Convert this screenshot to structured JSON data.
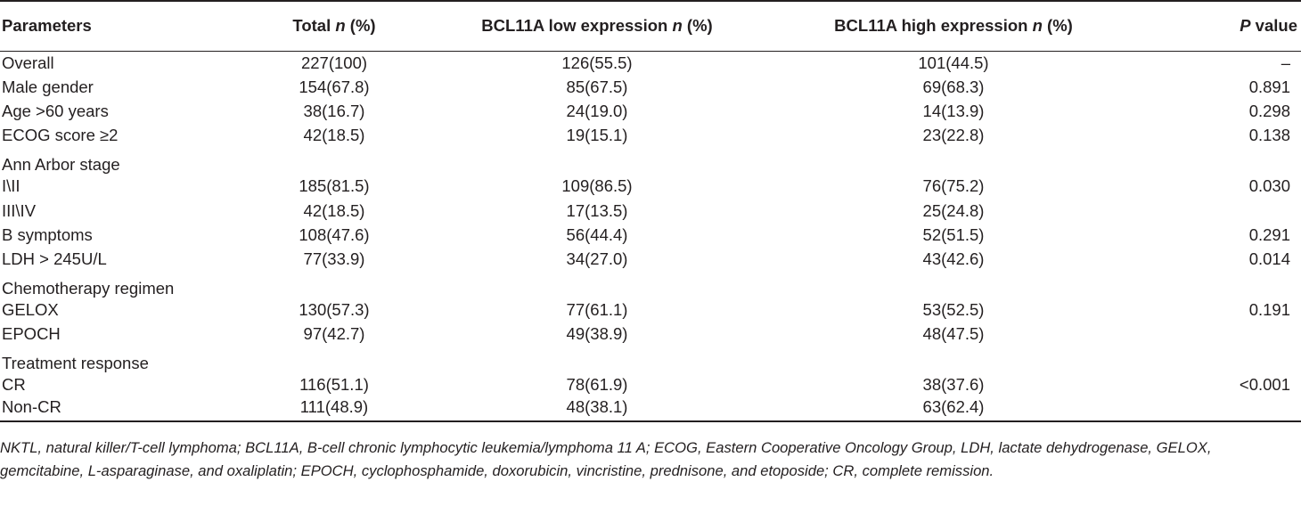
{
  "table": {
    "headers": [
      {
        "text": "Parameters",
        "italic": ""
      },
      {
        "text": "Total ",
        "italic": "n",
        "suffix": " (%)"
      },
      {
        "text": "BCL11A low expression ",
        "italic": "n",
        "suffix": " (%)"
      },
      {
        "text": "BCL11A high expression ",
        "italic": "n",
        "suffix": " (%)"
      },
      {
        "text": "",
        "italic": "P",
        "suffix": " value"
      }
    ],
    "rows": [
      {
        "param": "Overall",
        "total": "227(100)",
        "low": "126(55.5)",
        "high": "101(44.5)",
        "p": "–"
      },
      {
        "param": "Male gender",
        "total": "154(67.8)",
        "low": "85(67.5)",
        "high": "69(68.3)",
        "p": "0.891"
      },
      {
        "param": "Age >60 years",
        "total": "38(16.7)",
        "low": "24(19.0)",
        "high": "14(13.9)",
        "p": "0.298"
      },
      {
        "param": "ECOG score ≥2",
        "total": "42(18.5)",
        "low": "19(15.1)",
        "high": "23(22.8)",
        "p": "0.138"
      },
      {
        "param": "Ann Arbor stage",
        "total": "",
        "low": "",
        "high": "",
        "p": "",
        "group": true
      },
      {
        "param": "I\\II",
        "total": "185(81.5)",
        "low": "109(86.5)",
        "high": "76(75.2)",
        "p": "0.030"
      },
      {
        "param": "III\\IV",
        "total": "42(18.5)",
        "low": "17(13.5)",
        "high": "25(24.8)",
        "p": ""
      },
      {
        "param": "B symptoms",
        "total": "108(47.6)",
        "low": "56(44.4)",
        "high": "52(51.5)",
        "p": "0.291"
      },
      {
        "param": "LDH > 245U/L",
        "total": "77(33.9)",
        "low": "34(27.0)",
        "high": "43(42.6)",
        "p": "0.014"
      },
      {
        "param": "Chemotherapy regimen",
        "total": "",
        "low": "",
        "high": "",
        "p": "",
        "group": true
      },
      {
        "param": "GELOX",
        "total": "130(57.3)",
        "low": "77(61.1)",
        "high": "53(52.5)",
        "p": "0.191"
      },
      {
        "param": "EPOCH",
        "total": "97(42.7)",
        "low": "49(38.9)",
        "high": "48(47.5)",
        "p": ""
      },
      {
        "param": "Treatment response",
        "total": "",
        "low": "",
        "high": "",
        "p": "",
        "group": true
      },
      {
        "param": "CR",
        "total": "116(51.1)",
        "low": "78(61.9)",
        "high": "38(37.6)",
        "p": "<0.001"
      },
      {
        "param": "Non-CR",
        "total": "111(48.9)",
        "low": "48(38.1)",
        "high": "63(62.4)",
        "p": ""
      }
    ]
  },
  "footnote": "NKTL, natural killer/T-cell lymphoma; BCL11A, B-cell chronic lymphocytic leukemia/lymphoma 11 A; ECOG, Eastern Cooperative Oncology Group, LDH, lactate dehydrogenase, GELOX, gemcitabine, L-asparaginase, and oxaliplatin; EPOCH, cyclophosphamide, doxorubicin, vincristine, prednisone, and etoposide; CR, complete remission."
}
